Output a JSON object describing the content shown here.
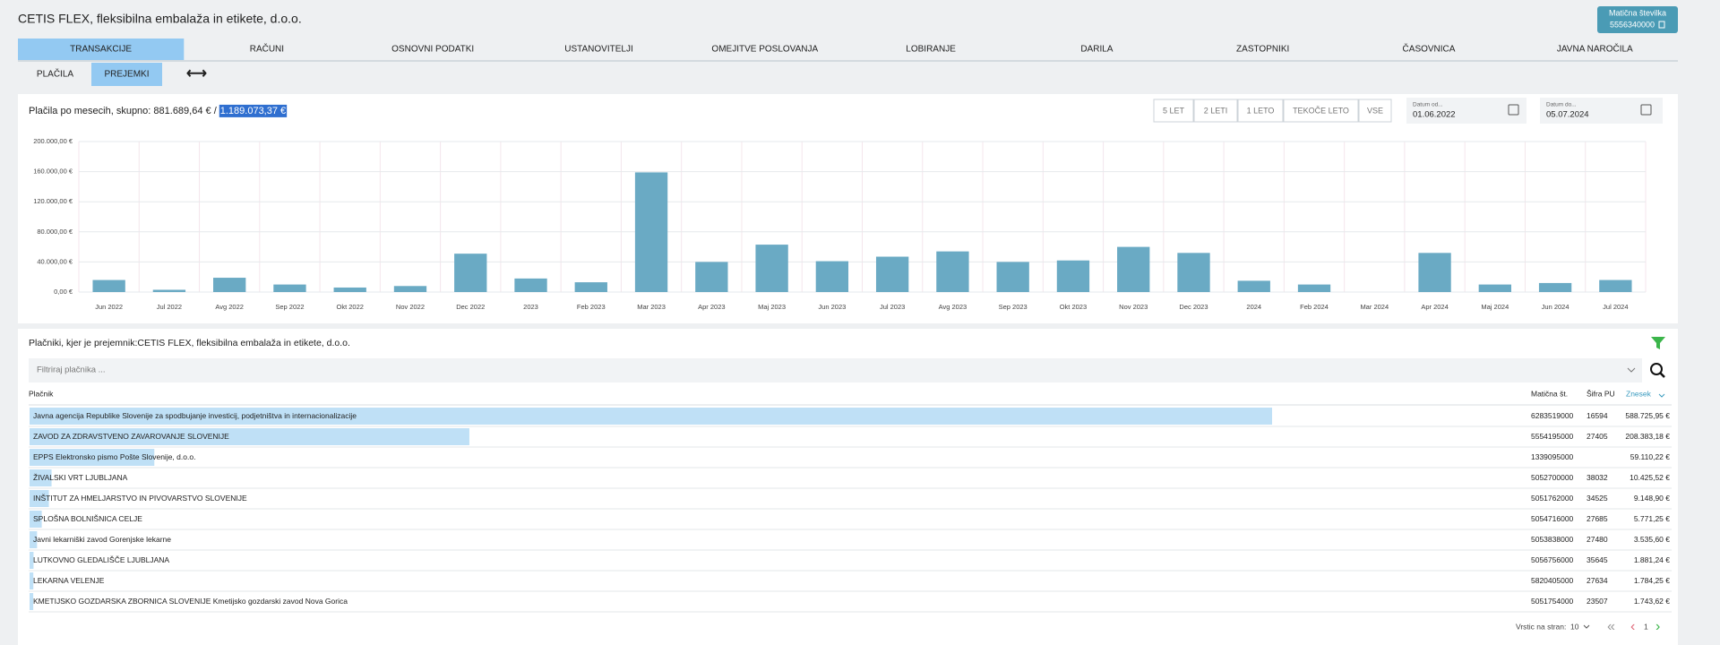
{
  "header": {
    "title": "CETIS FLEX, fleksibilna embalaža in etikete, d.o.o.",
    "id_button": {
      "label": "Matična številka",
      "value": "5556340000"
    }
  },
  "tabs": [
    {
      "label": "TRANSAKCIJE",
      "active": true
    },
    {
      "label": "RAČUNI"
    },
    {
      "label": "OSNOVNI PODATKI"
    },
    {
      "label": "USTANOVITELJI"
    },
    {
      "label": "OMEJITVE POSLOVANJA"
    },
    {
      "label": "LOBIRANJE"
    },
    {
      "label": "DARILA"
    },
    {
      "label": "ZASTOPNIKI"
    },
    {
      "label": "ČASOVNICA"
    },
    {
      "label": "JAVNA NAROČILA"
    }
  ],
  "subtabs": [
    {
      "label": "PLAČILA"
    },
    {
      "label": "PREJEMKI",
      "active": true
    }
  ],
  "period_buttons": [
    "5 LET",
    "2 LETI",
    "1 LETO",
    "TEKOČE LETO",
    "VSE"
  ],
  "date_from": {
    "label": "Datum od...",
    "value": "01.06.2022"
  },
  "date_to": {
    "label": "Datum do...",
    "value": "05.07.2024"
  },
  "chart_data": {
    "type": "bar",
    "title": "Plačila po mesecih, skupno: 881.689,64 € /",
    "total": "1.189.073,37 €",
    "categories": [
      "Jun 2022",
      "Jul 2022",
      "Avg 2022",
      "Sep 2022",
      "Okt 2022",
      "Nov 2022",
      "Dec 2022",
      "2023",
      "Feb 2023",
      "Mar 2023",
      "Apr 2023",
      "Maj 2023",
      "Jun 2023",
      "Jul 2023",
      "Avg 2023",
      "Sep 2023",
      "Okt 2023",
      "Nov 2023",
      "Dec 2023",
      "2024",
      "Feb 2024",
      "Mar 2024",
      "Apr 2024",
      "Maj 2024",
      "Jun 2024",
      "Jul 2024"
    ],
    "values": [
      16000,
      3000,
      19000,
      10000,
      6000,
      8000,
      51000,
      18000,
      13000,
      159000,
      40000,
      63000,
      41000,
      47000,
      54000,
      40000,
      42000,
      60000,
      52000,
      15000,
      10000,
      0,
      52000,
      10000,
      12000,
      16000
    ],
    "color": "#6aaac4",
    "ylim": [
      0,
      200000
    ],
    "yticks": [
      {
        "value": 0,
        "label": "0,00 €"
      },
      {
        "value": 40000,
        "label": "40.000,00 €"
      },
      {
        "value": 80000,
        "label": "80.000,00 €"
      },
      {
        "value": 120000,
        "label": "120.000,00 €"
      },
      {
        "value": 160000,
        "label": "160.000,00 €"
      },
      {
        "value": 200000,
        "label": "200.000,00 €"
      }
    ],
    "grid": true
  },
  "table": {
    "title": "Plačniki, kjer je prejemnik:CETIS FLEX, fleksibilna embalaža in etikete, d.o.o.",
    "filter_placeholder": "Filtriraj plačnika ...",
    "columns": [
      "Plačnik",
      "Matična št.",
      "Šifra PU",
      "Znesek"
    ],
    "bar_color": "#bfe0f6",
    "rows": [
      {
        "payer": "Javna agencija Republike Slovenije za spodbujanje investicij, podjetništva in internacionalizacije",
        "id": "6283519000",
        "code": "16594",
        "amount": 588725.95,
        "amount_label": "588.725,95 €"
      },
      {
        "payer": "ZAVOD ZA ZDRAVSTVENO ZAVAROVANJE SLOVENIJE",
        "id": "5554195000",
        "code": "27405",
        "amount": 208383.18,
        "amount_label": "208.383,18 €"
      },
      {
        "payer": "EPPS Elektronsko pismo Pošte Slovenije, d.o.o.",
        "id": "1339095000",
        "amount": 59110.22,
        "amount_label": "59.110,22 €"
      },
      {
        "payer": "ŽIVALSKI VRT LJUBLJANA",
        "id": "5052700000",
        "code": "38032",
        "amount": 10425.52,
        "amount_label": "10.425,52 €"
      },
      {
        "payer": "INŠTITUT ZA HMELJARSTVO IN PIVOVARSTVO SLOVENIJE",
        "id": "5051762000",
        "code": "34525",
        "amount": 9148.9,
        "amount_label": "9.148,90 €"
      },
      {
        "payer": "SPLOŠNA BOLNIŠNICA CELJE",
        "id": "5054716000",
        "code": "27685",
        "amount": 5771.25,
        "amount_label": "5.771,25 €"
      },
      {
        "payer": "Javni lekarniški zavod Gorenjske lekarne",
        "id": "5053838000",
        "code": "27480",
        "amount": 3535.6,
        "amount_label": "3.535,60 €"
      },
      {
        "payer": "LUTKOVNO GLEDALIŠČE LJUBLJANA",
        "id": "5056756000",
        "code": "35645",
        "amount": 1881.24,
        "amount_label": "1.881,24 €"
      },
      {
        "payer": "LEKARNA VELENJE",
        "id": "5820405000",
        "code": "27634",
        "amount": 1784.25,
        "amount_label": "1.784,25 €"
      },
      {
        "payer": "KMETIJSKO GOZDARSKA ZBORNICA SLOVENIJE Kmetijsko gozdarski zavod Nova Gorica",
        "id": "5051754000",
        "code": "23507",
        "amount": 1743.62,
        "amount_label": "1.743,62 €"
      }
    ]
  },
  "pagination": {
    "rows_label": "Vrstic na stran:",
    "rows_per_page": "10",
    "page": "1"
  }
}
